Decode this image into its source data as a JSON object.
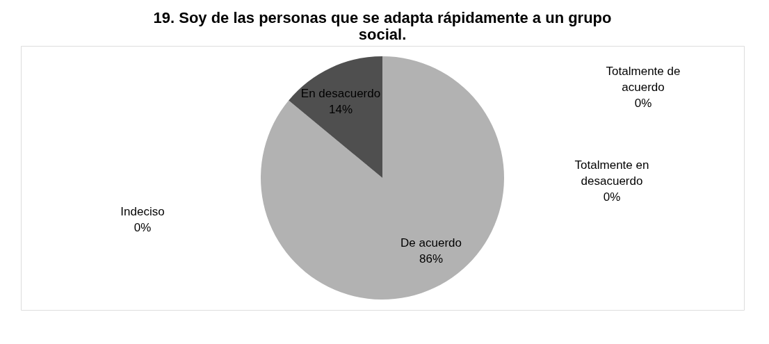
{
  "chart_data": {
    "type": "pie",
    "title": [
      "19.  Soy de las personas  que se adapta rápidamente  a un grupo",
      "social."
    ],
    "categories": [
      "Totalmente de acuerdo",
      "De acuerdo",
      "Totalmente en desacuerdo",
      "Indeciso",
      "En desacuerdo"
    ],
    "values": [
      0,
      86,
      0,
      0,
      14
    ],
    "value_labels": [
      "0%",
      "86%",
      "0%",
      "0%",
      "14%"
    ],
    "colors": [
      "#d9d9d9",
      "#b2b2b2",
      "#8c8c8c",
      "#6e6e6e",
      "#4f4f4f"
    ],
    "legend": false
  }
}
